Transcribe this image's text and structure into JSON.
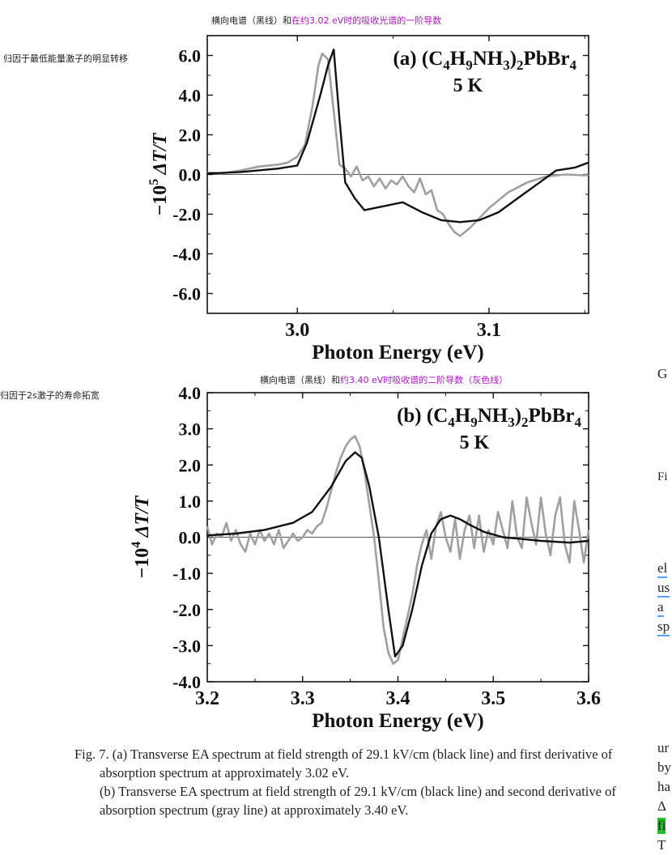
{
  "annotations": {
    "top_note_plain": "横向电谱（黑线）和",
    "top_note_colored": "在约3.02 eV时的吸收光谱的一阶导数",
    "side_note_a": "归因于最低能量激子的明显转移",
    "mid_note_plain": "横向电谱（黑线）和",
    "mid_note_colored": "约3.40 eV时吸收谱的二阶导数（灰色线）",
    "side_note_b": "归因于2s激子的寿命拓宽"
  },
  "chart_data": [
    {
      "type": "line",
      "panel": "a",
      "title_prefix": "(a) ",
      "compound": [
        "(C",
        "4",
        "H",
        "9",
        "NH",
        "3",
        ")",
        "2",
        "PbBr",
        "4"
      ],
      "temperature": "5 K",
      "ylabel_prefix": "−10",
      "ylabel_exp": "5",
      "ylabel_main": " ΔT/T",
      "xlabel": "Photon Energy (eV)",
      "xlim": [
        2.953,
        3.152
      ],
      "ylim": [
        -7.0,
        7.0
      ],
      "xticks": [
        3.0,
        3.1
      ],
      "xtick_labels": [
        "3.0",
        "3.1"
      ],
      "yticks": [
        6,
        4,
        2,
        0,
        -2,
        -4,
        -6
      ],
      "ytick_labels": [
        "6.0",
        "4.0",
        "2.0",
        "0.0",
        "-2.0",
        "-4.0",
        "-6.0"
      ],
      "colors": {
        "black_line": "#111111",
        "gray_line": "#a0a0a0"
      },
      "series": [
        {
          "style": "black",
          "x": [
            2.953,
            2.97,
            2.99,
            3.0,
            3.005,
            3.012,
            3.016,
            3.019,
            3.022,
            3.025,
            3.03,
            3.035,
            3.045,
            3.055,
            3.065,
            3.075,
            3.085,
            3.095,
            3.105,
            3.115,
            3.125,
            3.135,
            3.145,
            3.152
          ],
          "y": [
            0.05,
            0.12,
            0.3,
            0.45,
            1.6,
            4.0,
            5.5,
            6.3,
            2.8,
            -0.4,
            -1.2,
            -1.8,
            -1.6,
            -1.4,
            -1.9,
            -2.3,
            -2.4,
            -2.3,
            -1.9,
            -1.2,
            -0.5,
            0.2,
            0.35,
            0.6
          ]
        },
        {
          "style": "gray",
          "x": [
            2.953,
            2.96,
            2.97,
            2.98,
            2.99,
            2.995,
            3.0,
            3.004,
            3.008,
            3.011,
            3.013,
            3.016,
            3.019,
            3.022,
            3.025,
            3.028,
            3.031,
            3.034,
            3.037,
            3.04,
            3.043,
            3.046,
            3.049,
            3.052,
            3.055,
            3.058,
            3.061,
            3.064,
            3.067,
            3.07,
            3.073,
            3.076,
            3.079,
            3.082,
            3.085,
            3.09,
            3.095,
            3.1,
            3.11,
            3.12,
            3.13,
            3.14,
            3.152
          ],
          "y": [
            0.1,
            0.05,
            0.2,
            0.4,
            0.5,
            0.6,
            0.9,
            1.5,
            3.5,
            5.5,
            6.1,
            5.8,
            3.2,
            0.5,
            0.3,
            -0.1,
            0.4,
            -0.3,
            -0.1,
            -0.6,
            -0.2,
            -0.7,
            -0.3,
            -0.5,
            -0.1,
            -0.6,
            -0.9,
            -0.2,
            -1.0,
            -0.8,
            -1.8,
            -2.0,
            -2.5,
            -2.9,
            -3.1,
            -2.7,
            -2.2,
            -1.7,
            -0.9,
            -0.4,
            -0.1,
            0.0,
            -0.05
          ]
        }
      ]
    },
    {
      "type": "line",
      "panel": "b",
      "title_prefix": "(b) ",
      "compound": [
        "(C",
        "4",
        "H",
        "9",
        "NH",
        "3",
        ")",
        "2",
        "PbBr",
        "4"
      ],
      "temperature": "5 K",
      "ylabel_prefix": "−10",
      "ylabel_exp": "4",
      "ylabel_main": " ΔT/T",
      "xlabel": "Photon Energy (eV)",
      "xlim": [
        3.2,
        3.6
      ],
      "ylim": [
        -4.0,
        4.0
      ],
      "xticks": [
        3.2,
        3.3,
        3.4,
        3.5,
        3.6
      ],
      "xtick_labels": [
        "3.2",
        "3.3",
        "3.4",
        "3.5",
        "3.6"
      ],
      "yticks": [
        4,
        3,
        2,
        1,
        0,
        -1,
        -2,
        -3,
        -4
      ],
      "ytick_labels": [
        "4.0",
        "3.0",
        "2.0",
        "1.0",
        "0.0",
        "-1.0",
        "-2.0",
        "-3.0",
        "-4.0"
      ],
      "colors": {
        "black_line": "#111111",
        "gray_line": "#a0a0a0"
      },
      "series": [
        {
          "style": "black",
          "x": [
            3.2,
            3.23,
            3.26,
            3.29,
            3.31,
            3.33,
            3.345,
            3.355,
            3.362,
            3.37,
            3.38,
            3.39,
            3.397,
            3.405,
            3.415,
            3.425,
            3.435,
            3.445,
            3.455,
            3.465,
            3.475,
            3.49,
            3.51,
            3.53,
            3.55,
            3.58,
            3.6
          ],
          "y": [
            0.05,
            0.1,
            0.2,
            0.4,
            0.7,
            1.4,
            2.1,
            2.35,
            2.2,
            1.4,
            0.0,
            -2.0,
            -3.3,
            -3.0,
            -2.0,
            -0.8,
            0.1,
            0.5,
            0.6,
            0.5,
            0.35,
            0.15,
            0.0,
            -0.05,
            -0.1,
            -0.15,
            -0.1
          ]
        },
        {
          "style": "gray",
          "x": [
            3.2,
            3.205,
            3.21,
            3.215,
            3.22,
            3.225,
            3.23,
            3.235,
            3.24,
            3.245,
            3.25,
            3.255,
            3.26,
            3.265,
            3.27,
            3.275,
            3.28,
            3.285,
            3.29,
            3.295,
            3.3,
            3.305,
            3.31,
            3.315,
            3.32,
            3.325,
            3.33,
            3.335,
            3.34,
            3.345,
            3.35,
            3.355,
            3.36,
            3.365,
            3.37,
            3.375,
            3.38,
            3.385,
            3.39,
            3.395,
            3.4,
            3.405,
            3.41,
            3.415,
            3.42,
            3.425,
            3.43,
            3.435,
            3.44,
            3.445,
            3.45,
            3.455,
            3.46,
            3.465,
            3.47,
            3.475,
            3.48,
            3.485,
            3.49,
            3.495,
            3.5,
            3.505,
            3.51,
            3.515,
            3.52,
            3.525,
            3.53,
            3.535,
            3.54,
            3.545,
            3.55,
            3.555,
            3.56,
            3.565,
            3.57,
            3.575,
            3.58,
            3.585,
            3.59,
            3.595,
            3.6
          ],
          "y": [
            0.3,
            -0.2,
            0.1,
            0.0,
            0.4,
            -0.1,
            0.2,
            -0.2,
            -0.4,
            0.1,
            -0.2,
            0.2,
            -0.1,
            0.1,
            -0.2,
            0.2,
            -0.3,
            -0.1,
            0.1,
            -0.1,
            0.0,
            0.2,
            0.1,
            0.3,
            0.4,
            0.8,
            1.3,
            1.8,
            2.2,
            2.5,
            2.7,
            2.8,
            2.5,
            1.8,
            0.9,
            0.0,
            -1.2,
            -2.5,
            -3.2,
            -3.5,
            -3.4,
            -2.8,
            -2.2,
            -1.6,
            -0.8,
            -0.2,
            0.2,
            -0.6,
            0.3,
            0.7,
            0.0,
            -0.4,
            0.5,
            -0.6,
            0.2,
            0.6,
            -0.3,
            0.6,
            -0.4,
            0.2,
            -0.2,
            0.7,
            0.2,
            -0.3,
            1.0,
            0.0,
            -0.3,
            1.1,
            0.4,
            -0.2,
            1.1,
            0.1,
            -0.5,
            0.6,
            1.1,
            -0.2,
            -0.7,
            1.0,
            0.2,
            -0.7,
            0.2
          ]
        }
      ]
    }
  ],
  "caption": {
    "p1": "Fig. 7.   (a) Transverse EA spectrum at field strength of 29.1 kV/cm (black line) and first derivative of absorption spectrum at approximately 3.02 eV.",
    "p2": "(b) Transverse EA spectrum at field strength of 29.1 kV/cm (black line) and second derivative of absorption spectrum (gray line) at approximately 3.40 eV."
  },
  "right_fragments": [
    "G",
    "Fi",
    "el",
    "us",
    "a",
    "sp",
    "ur",
    "by",
    "ha",
    "Δ",
    "fi",
    "T"
  ]
}
